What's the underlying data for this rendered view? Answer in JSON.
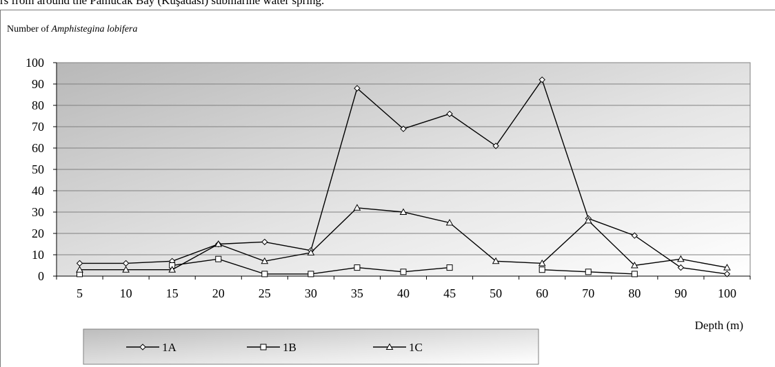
{
  "caption": "rs from around the Pamucak Bay (Kuşadası) submarine water spring.",
  "chart_data": {
    "type": "line",
    "title": "",
    "ylabel_prefix": "Number of ",
    "ylabel_species": "Amphistegina lobifera",
    "xlabel": "Depth (m)",
    "categories": [
      "5",
      "10",
      "15",
      "20",
      "25",
      "30",
      "35",
      "40",
      "45",
      "50",
      "60",
      "70",
      "80",
      "90",
      "100"
    ],
    "ylim": [
      0,
      100
    ],
    "yticks": [
      0,
      10,
      20,
      30,
      40,
      50,
      60,
      70,
      80,
      90,
      100
    ],
    "grid": true,
    "legend_position": "bottom-left",
    "series": [
      {
        "name": "1A",
        "marker": "diamond",
        "values": [
          6,
          6,
          7,
          15,
          16,
          12,
          88,
          69,
          76,
          61,
          92,
          27,
          19,
          4,
          1
        ]
      },
      {
        "name": "1B",
        "marker": "square",
        "values": [
          1,
          null,
          5,
          8,
          1,
          1,
          4,
          2,
          4,
          null,
          3,
          2,
          1,
          null,
          null
        ]
      },
      {
        "name": "1C",
        "marker": "triangle",
        "values": [
          3,
          3,
          3,
          15,
          7,
          11,
          32,
          30,
          25,
          7,
          6,
          26,
          5,
          8,
          4
        ]
      }
    ],
    "colors": {
      "line": "#000000",
      "plot_bg_dark": "#c2c2c2",
      "plot_bg_light": "#ffffff",
      "grid": "#808080"
    }
  }
}
